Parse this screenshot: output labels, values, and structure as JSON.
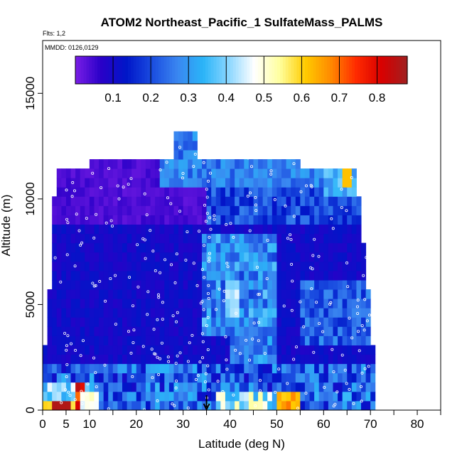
{
  "chart_data": {
    "type": "heatmap",
    "title": "ATOM2 Northeast_Pacific_1 SulfateMass_PALMS",
    "flights_label": "Flts: 1,2",
    "dates_label": "MMDD: 0126,0129",
    "xlabel": "Latitude (deg N)",
    "ylabel": "Altitude (m)",
    "xlim": [
      0,
      85
    ],
    "ylim": [
      0,
      17500
    ],
    "x_ticks": [
      0,
      5,
      10,
      20,
      30,
      40,
      50,
      60,
      70,
      80
    ],
    "x_tick_labels": [
      "0",
      "5",
      "10",
      "20",
      "30",
      "40",
      "50",
      "60",
      "70",
      "80"
    ],
    "x_minor_ticks": [
      0,
      5,
      10,
      15,
      20,
      25,
      30,
      35,
      40,
      45,
      50,
      55,
      60,
      65,
      70,
      75,
      80,
      85
    ],
    "y_ticks": [
      0,
      5000,
      10000,
      15000
    ],
    "y_tick_labels": [
      "0",
      "5000",
      "10000",
      "15000"
    ],
    "colorbar": {
      "range": [
        0,
        0.88
      ],
      "ticks": [
        0.1,
        0.2,
        0.3,
        0.4,
        0.5,
        0.6,
        0.7,
        0.8
      ],
      "tick_labels": [
        "0.1",
        "0.2",
        "0.3",
        "0.4",
        "0.5",
        "0.6",
        "0.7",
        "0.8"
      ],
      "colors": [
        "#7a1ee6",
        "#2a00c8",
        "#0016c8",
        "#1a4ce0",
        "#3a86f0",
        "#2ab4f8",
        "#8ad6ff",
        "#ffffff",
        "#ffff9e",
        "#ffcc00",
        "#ff8a00",
        "#ff2a00",
        "#d80000",
        "#a02020"
      ]
    },
    "marker_latitude": 35,
    "grid": false,
    "legend": "colorbar-top"
  },
  "colors": {
    "frame": "#000000",
    "flight_points": "#ffffff"
  }
}
